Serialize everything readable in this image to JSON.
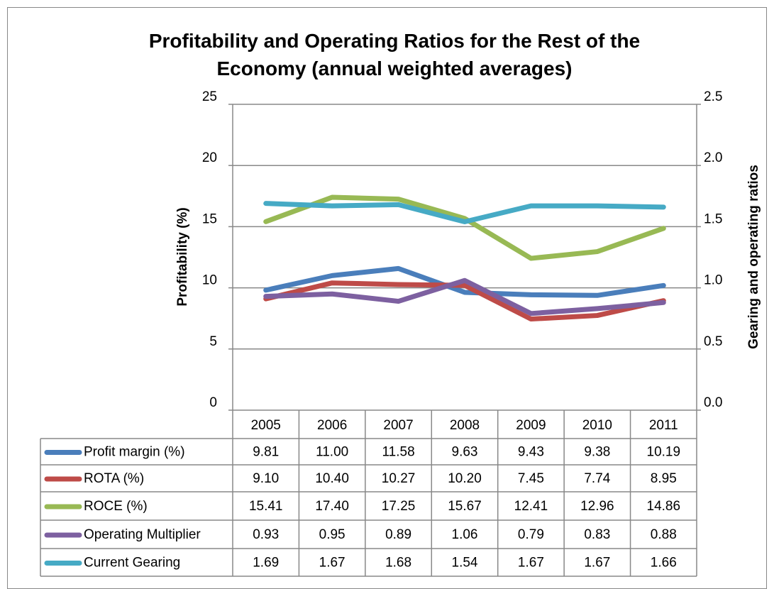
{
  "chart_data": {
    "type": "line",
    "title": "Profitability and Operating Ratios for the Rest of the Economy (annual weighted averages)",
    "y_label": "Profitability (%)",
    "y2_label": "Gearing and operating ratios",
    "categories": [
      "2005",
      "2006",
      "2007",
      "2008",
      "2009",
      "2010",
      "2011"
    ],
    "ylim": [
      0,
      25
    ],
    "yticks": [
      0,
      5,
      10,
      15,
      20,
      25
    ],
    "y2lim": [
      0,
      2.5
    ],
    "y2ticks": [
      {
        "value": 0,
        "label": "0.0"
      },
      0.5,
      {
        "value": 1,
        "label": "1.0"
      },
      1.5,
      {
        "value": 2,
        "label": "2.0"
      },
      2.5
    ],
    "grid": true,
    "data_table": true,
    "series": [
      {
        "name": "Profit margin (%)",
        "color": "#4a7ebb",
        "values": [
          9.81,
          11,
          11.58,
          9.63,
          9.43,
          9.38,
          10.19
        ],
        "value_labels": [
          "9.81",
          "11.00",
          "11.58",
          "9.63",
          "9.43",
          "9.38",
          "10.19"
        ]
      },
      {
        "name": "ROTA (%)",
        "color": "#be4b48",
        "values": [
          9.1,
          10.4,
          10.27,
          10.2,
          7.45,
          7.74,
          8.95
        ],
        "value_labels": [
          "9.10",
          "10.40",
          "10.27",
          "10.20",
          "7.45",
          "7.74",
          "8.95"
        ]
      },
      {
        "name": "ROCE (%)",
        "color": "#98b954",
        "values": [
          15.41,
          17.4,
          17.25,
          15.67,
          12.41,
          12.96,
          14.86
        ],
        "value_labels": [
          "15.41",
          "17.40",
          "17.25",
          "15.67",
          "12.41",
          "12.96",
          "14.86"
        ]
      },
      {
        "name": "Operating Multiplier",
        "color": "#7d60a0",
        "axis": "y2",
        "values": [
          0.93,
          0.95,
          0.89,
          1.06,
          0.79,
          0.83,
          0.88
        ],
        "value_labels": [
          "0.93",
          "0.95",
          "0.89",
          "1.06",
          "0.79",
          "0.83",
          "0.88"
        ]
      },
      {
        "name": "Current Gearing",
        "color": "#46aac5",
        "axis": "y2",
        "values": [
          1.69,
          1.67,
          1.68,
          1.54,
          1.67,
          1.67,
          1.66
        ],
        "value_labels": [
          "1.69",
          "1.67",
          "1.68",
          "1.54",
          "1.67",
          "1.67",
          "1.66"
        ]
      }
    ]
  }
}
